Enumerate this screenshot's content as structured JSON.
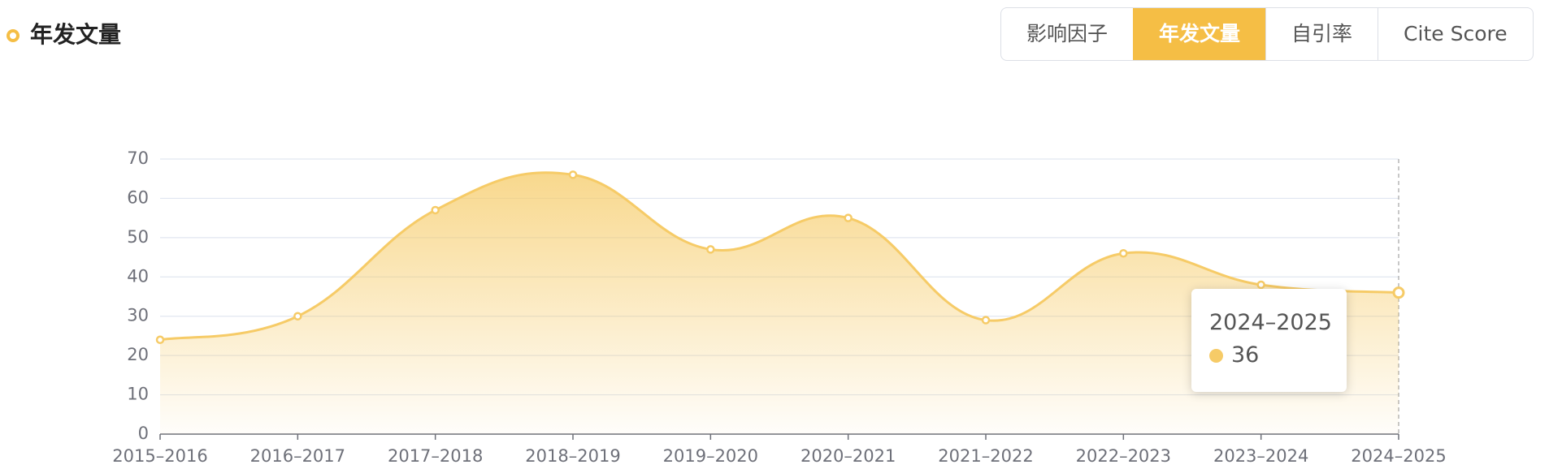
{
  "chart_data": {
    "type": "area",
    "title": "年发文量",
    "categories": [
      "2015–2016",
      "2016–2017",
      "2017–2018",
      "2018–2019",
      "2019–2020",
      "2020–2021",
      "2021–2022",
      "2022–2023",
      "2023–2024",
      "2024–2025"
    ],
    "values": [
      24,
      30,
      57,
      66,
      47,
      55,
      29,
      46,
      38,
      36
    ],
    "color": "#f6cb67",
    "ylim": [
      0,
      70
    ],
    "yticks": [
      0,
      10,
      20,
      30,
      40,
      50,
      60,
      70
    ],
    "grid": true
  },
  "tabs": {
    "items": [
      "影响因子",
      "年发文量",
      "自引率",
      "Cite Score"
    ],
    "active": 1
  }
}
